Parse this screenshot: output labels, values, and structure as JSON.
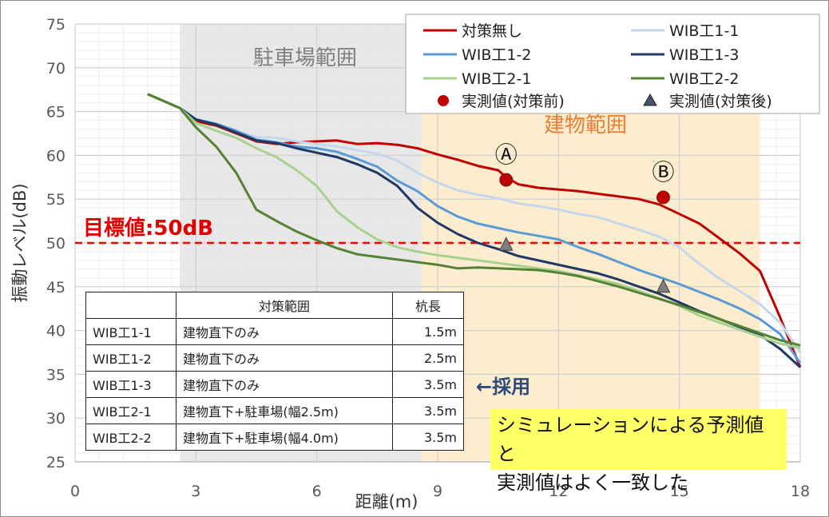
{
  "chart_data": {
    "type": "line",
    "xlabel": "距離(m)",
    "ylabel": "振動レベル(dB)",
    "xlim": [
      0,
      18
    ],
    "ylim": [
      25,
      75
    ],
    "x_ticks": [
      "0",
      "3",
      "6",
      "9",
      "12",
      "15",
      "18"
    ],
    "y_ticks": [
      "25",
      "30",
      "35",
      "40",
      "45",
      "50",
      "55",
      "60",
      "65",
      "70",
      "75"
    ],
    "grid": true,
    "legend_position": "top-right",
    "regions": [
      {
        "label": "駐車場範囲",
        "x_range": [
          2.6,
          8.6
        ],
        "color": "#e0e0e0"
      },
      {
        "label": "建物範囲",
        "x_range": [
          8.6,
          17.0
        ],
        "color": "#fde9c3"
      }
    ],
    "target_line": {
      "label": "目標値:50dB",
      "y": 50,
      "color": "#ff0000"
    },
    "series": [
      {
        "name": "対策無し",
        "color": "#c00000",
        "x": [
          1.8,
          2.6,
          3.0,
          3.5,
          4.0,
          4.5,
          5.0,
          5.5,
          6.0,
          6.5,
          7.0,
          7.5,
          8.0,
          8.5,
          9.0,
          9.5,
          10.0,
          10.5,
          10.7,
          11.0,
          11.5,
          12.0,
          12.5,
          13.0,
          13.5,
          14.0,
          14.5,
          15.0,
          15.5,
          16.0,
          16.5,
          17.0,
          17.5,
          18.0
        ],
        "y": [
          67.0,
          65.4,
          63.9,
          63.4,
          62.5,
          61.6,
          61.3,
          61.5,
          61.6,
          61.7,
          61.3,
          61.4,
          61.2,
          60.8,
          60.1,
          59.5,
          58.8,
          58.3,
          57.5,
          56.7,
          56.3,
          56.1,
          55.9,
          55.6,
          55.3,
          55.0,
          54.4,
          53.3,
          52.2,
          50.5,
          48.8,
          46.8,
          41.5,
          35.8
        ]
      },
      {
        "name": "WIB工1-1",
        "color": "#c5d7ea",
        "x": [
          1.8,
          2.6,
          3.0,
          3.5,
          4.0,
          4.5,
          5.0,
          5.5,
          6.0,
          6.5,
          7.0,
          7.5,
          8.0,
          8.5,
          9.0,
          9.5,
          10.0,
          10.5,
          11.0,
          11.5,
          12.0,
          12.5,
          13.0,
          13.5,
          14.0,
          14.5,
          15.0,
          15.5,
          16.0,
          16.5,
          17.0,
          17.5,
          18.0
        ],
        "y": [
          67.0,
          65.4,
          64.1,
          63.6,
          62.8,
          62.1,
          62.0,
          61.6,
          61.3,
          61.0,
          60.6,
          60.2,
          59.4,
          58.0,
          56.9,
          56.0,
          55.5,
          55.1,
          54.5,
          54.2,
          53.8,
          53.3,
          52.9,
          52.2,
          51.5,
          50.7,
          49.5,
          47.6,
          45.9,
          44.5,
          43.0,
          40.9,
          37.5
        ]
      },
      {
        "name": "WIB工1-2",
        "color": "#5b9bd5",
        "x": [
          1.8,
          2.6,
          3.0,
          3.5,
          4.0,
          4.5,
          5.0,
          5.5,
          6.0,
          6.5,
          7.0,
          7.5,
          8.0,
          8.5,
          9.0,
          9.5,
          10.0,
          10.5,
          11.0,
          11.5,
          12.0,
          12.5,
          13.0,
          13.5,
          14.0,
          14.5,
          15.0,
          15.5,
          16.0,
          16.5,
          17.0,
          17.5,
          18.0
        ],
        "y": [
          67.0,
          65.4,
          64.1,
          63.6,
          62.8,
          61.8,
          61.5,
          61.0,
          60.8,
          60.4,
          59.6,
          58.7,
          57.1,
          55.9,
          54.2,
          53.0,
          52.2,
          51.7,
          51.2,
          50.8,
          50.4,
          49.5,
          48.7,
          47.8,
          46.9,
          46.1,
          45.3,
          44.4,
          43.5,
          42.5,
          41.3,
          39.6,
          36.3
        ]
      },
      {
        "name": "WIB工1-3",
        "color": "#203864",
        "x": [
          1.8,
          2.6,
          3.0,
          3.5,
          4.0,
          4.5,
          5.0,
          5.5,
          6.0,
          6.5,
          7.0,
          7.5,
          8.0,
          8.5,
          9.0,
          9.5,
          10.0,
          10.5,
          11.0,
          11.5,
          12.0,
          12.5,
          13.0,
          13.5,
          14.0,
          14.5,
          15.0,
          15.5,
          16.0,
          16.5,
          17.0,
          17.5,
          18.0
        ],
        "y": [
          67.0,
          65.4,
          64.1,
          63.5,
          62.6,
          61.7,
          61.4,
          60.8,
          60.3,
          59.8,
          59.0,
          58.0,
          56.5,
          54.0,
          52.3,
          51.0,
          50.0,
          49.3,
          48.5,
          48.0,
          47.5,
          47.0,
          46.5,
          45.8,
          45.0,
          44.2,
          43.2,
          42.2,
          41.3,
          40.4,
          39.5,
          37.9,
          35.8
        ]
      },
      {
        "name": "WIB工2-1",
        "color": "#a9d18e",
        "x": [
          1.8,
          2.6,
          3.0,
          3.5,
          4.0,
          4.5,
          5.0,
          5.5,
          6.0,
          6.5,
          7.0,
          7.5,
          8.0,
          8.5,
          9.0,
          9.5,
          10.0,
          10.5,
          11.0,
          11.5,
          12.0,
          12.5,
          13.0,
          13.5,
          14.0,
          14.5,
          15.0,
          15.5,
          16.0,
          16.5,
          17.0,
          17.5,
          18.0
        ],
        "y": [
          67.0,
          65.4,
          63.7,
          62.8,
          62.0,
          60.8,
          59.8,
          58.3,
          56.5,
          53.6,
          51.8,
          50.4,
          49.5,
          49.0,
          48.6,
          48.3,
          48.0,
          47.7,
          47.4,
          47.1,
          46.8,
          46.3,
          45.8,
          45.3,
          44.5,
          43.7,
          42.8,
          41.7,
          40.9,
          40.1,
          39.3,
          38.5,
          38.0
        ]
      },
      {
        "name": "WIB工2-2",
        "color": "#548235",
        "x": [
          1.8,
          2.6,
          3.0,
          3.5,
          4.0,
          4.5,
          5.0,
          5.5,
          6.0,
          6.5,
          7.0,
          7.5,
          8.0,
          8.5,
          9.0,
          9.5,
          10.0,
          10.5,
          11.0,
          11.5,
          12.0,
          12.5,
          13.0,
          13.5,
          14.0,
          14.5,
          15.0,
          15.5,
          16.0,
          16.5,
          17.0,
          17.5,
          18.0
        ],
        "y": [
          67.0,
          65.4,
          63.2,
          61.0,
          58.0,
          53.8,
          52.5,
          51.3,
          50.3,
          49.4,
          48.7,
          48.4,
          48.1,
          47.8,
          47.5,
          47.1,
          47.2,
          47.1,
          47.0,
          46.9,
          46.6,
          46.2,
          45.6,
          45.0,
          44.3,
          43.6,
          42.9,
          42.1,
          41.3,
          40.5,
          39.7,
          38.9,
          38.3
        ]
      }
    ],
    "measured_before": {
      "name": "実測値(対策前)",
      "color": "#c00000",
      "points": [
        {
          "x": 10.7,
          "y": 57.2,
          "label": "Ⓐ"
        },
        {
          "x": 14.6,
          "y": 55.2,
          "label": "Ⓑ"
        }
      ]
    },
    "measured_after": {
      "name": "実測値(対策後)",
      "color": "#7f7f7f",
      "points": [
        {
          "x": 10.7,
          "y": 49.8
        },
        {
          "x": 14.6,
          "y": 45.0
        }
      ]
    }
  },
  "table": {
    "header": [
      "",
      "対策範囲",
      "杭長"
    ],
    "rows": [
      [
        "WIB工1-1",
        "建物直下のみ",
        "1.5m"
      ],
      [
        "WIB工1-2",
        "建物直下のみ",
        "2.5m"
      ],
      [
        "WIB工1-3",
        "建物直下のみ",
        "3.5m"
      ],
      [
        "WIB工2-1",
        "建物直下+駐車場(幅2.5m)",
        "3.5m"
      ],
      [
        "WIB工2-2",
        "建物直下+駐車場(幅4.0m)",
        "3.5m"
      ]
    ]
  },
  "adopted_label": "←採用",
  "note": {
    "line1": "シミュレーションによる予測値と",
    "line2": "実測値はよく一致した"
  }
}
